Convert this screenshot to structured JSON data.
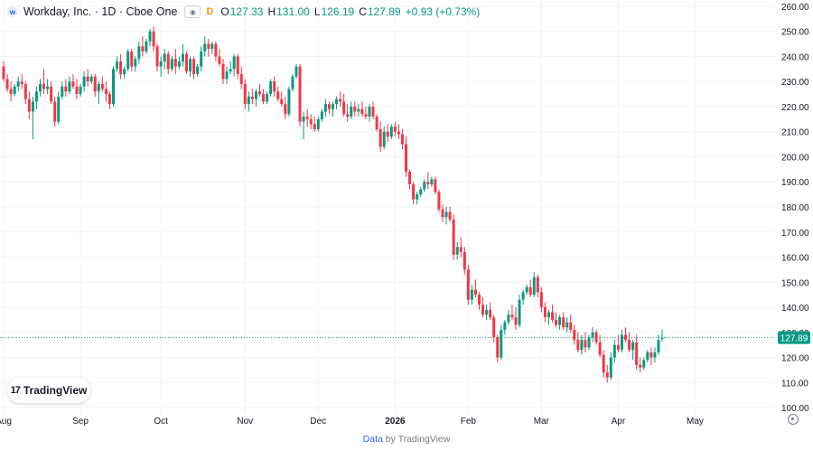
{
  "header": {
    "symbol": "Workday, Inc. · 1D · Cboe One",
    "flag": "D",
    "ohlc": [
      {
        "label": "O",
        "value": "127.33"
      },
      {
        "label": "H",
        "value": "131.00"
      },
      {
        "label": "L",
        "value": "126.19"
      },
      {
        "label": "C",
        "value": "127.89"
      }
    ],
    "change": "+0.93 (+0.73%)"
  },
  "branding": {
    "badge_text": "TradingView",
    "footer_prefix": "Data",
    "footer_suffix": "by TradingView"
  },
  "colors": {
    "up": "#089981",
    "down": "#f23645",
    "grid": "#f0f3fa",
    "axis_text": "#131722",
    "price_line": "#089981",
    "accent": "#2962ff"
  },
  "chart_data": {
    "type": "candlestick",
    "title": "Workday, Inc. · 1D · Cboe One",
    "xlabel": "",
    "ylabel": "",
    "ylim": [
      97.5,
      262.5
    ],
    "y_ticks": [
      "100.00",
      "110.00",
      "120.00",
      "130.00",
      "140.00",
      "150.00",
      "160.00",
      "170.00",
      "180.00",
      "190.00",
      "200.00",
      "210.00",
      "220.00",
      "230.00",
      "240.00",
      "250.00",
      "260.00"
    ],
    "x_ticks": [
      {
        "label": "Aug",
        "index": 0
      },
      {
        "label": "Sep",
        "index": 21
      },
      {
        "label": "Oct",
        "index": 43
      },
      {
        "label": "Nov",
        "index": 66
      },
      {
        "label": "Dec",
        "index": 86
      },
      {
        "label": "2026",
        "index": 107
      },
      {
        "label": "Feb",
        "index": 127
      },
      {
        "label": "Mar",
        "index": 147
      },
      {
        "label": "Apr",
        "index": 168
      },
      {
        "label": "May",
        "index": 189
      }
    ],
    "n_slots": 202,
    "last_price": 127.89,
    "last_price_label": "127.89",
    "grid": true,
    "candles": [
      [
        236,
        238,
        230,
        231
      ],
      [
        231,
        233,
        226,
        227
      ],
      [
        227,
        230,
        222,
        225
      ],
      [
        225,
        229,
        224,
        228
      ],
      [
        228,
        232,
        226,
        230
      ],
      [
        230,
        233,
        227,
        229
      ],
      [
        229,
        230,
        221,
        223
      ],
      [
        223,
        226,
        215,
        218
      ],
      [
        218,
        224,
        207,
        222
      ],
      [
        222,
        228,
        219,
        226
      ],
      [
        226,
        231,
        224,
        229
      ],
      [
        229,
        235,
        225,
        227
      ],
      [
        227,
        231,
        225,
        228
      ],
      [
        228,
        230,
        221,
        222
      ],
      [
        222,
        224,
        212,
        214
      ],
      [
        214,
        226,
        213,
        224
      ],
      [
        224,
        230,
        223,
        228
      ],
      [
        228,
        231,
        224,
        226
      ],
      [
        226,
        232,
        225,
        230
      ],
      [
        230,
        233,
        227,
        228
      ],
      [
        228,
        231,
        223,
        225
      ],
      [
        225,
        229,
        224,
        228
      ],
      [
        228,
        234,
        226,
        232
      ],
      [
        232,
        235,
        228,
        230
      ],
      [
        230,
        233,
        229,
        232
      ],
      [
        232,
        233,
        224,
        226
      ],
      [
        226,
        230,
        221,
        229
      ],
      [
        229,
        232,
        226,
        227
      ],
      [
        227,
        230,
        222,
        225
      ],
      [
        225,
        226,
        219,
        221
      ],
      [
        221,
        236,
        220,
        235
      ],
      [
        235,
        240,
        234,
        238
      ],
      [
        238,
        241,
        231,
        233
      ],
      [
        233,
        236,
        231,
        235
      ],
      [
        235,
        243,
        234,
        242
      ],
      [
        242,
        243,
        234,
        236
      ],
      [
        236,
        240,
        234,
        239
      ],
      [
        239,
        246,
        237,
        244
      ],
      [
        244,
        248,
        240,
        242
      ],
      [
        242,
        247,
        241,
        246
      ],
      [
        246,
        251,
        244,
        250
      ],
      [
        250,
        252,
        242,
        244
      ],
      [
        244,
        245,
        234,
        236
      ],
      [
        236,
        240,
        232,
        238
      ],
      [
        238,
        243,
        235,
        241
      ],
      [
        241,
        242,
        233,
        235
      ],
      [
        235,
        240,
        234,
        239
      ],
      [
        239,
        243,
        233,
        236
      ],
      [
        236,
        240,
        235,
        238
      ],
      [
        238,
        245,
        236,
        241
      ],
      [
        241,
        242,
        233,
        234
      ],
      [
        234,
        240,
        232,
        239
      ],
      [
        239,
        240,
        231,
        233
      ],
      [
        233,
        237,
        232,
        236
      ],
      [
        236,
        244,
        234,
        242
      ],
      [
        242,
        248,
        240,
        245
      ],
      [
        245,
        247,
        240,
        243
      ],
      [
        243,
        246,
        241,
        245
      ],
      [
        245,
        246,
        238,
        240
      ],
      [
        240,
        243,
        236,
        237
      ],
      [
        237,
        239,
        229,
        231
      ],
      [
        231,
        236,
        229,
        234
      ],
      [
        234,
        238,
        233,
        235
      ],
      [
        235,
        241,
        232,
        240
      ],
      [
        240,
        241,
        231,
        233
      ],
      [
        233,
        236,
        227,
        229
      ],
      [
        229,
        231,
        219,
        221
      ],
      [
        221,
        226,
        218,
        224
      ],
      [
        224,
        227,
        221,
        223
      ],
      [
        223,
        227,
        220,
        226
      ],
      [
        226,
        229,
        224,
        225
      ],
      [
        225,
        227,
        221,
        222
      ],
      [
        222,
        226,
        221,
        225
      ],
      [
        225,
        231,
        224,
        230
      ],
      [
        230,
        232,
        224,
        226
      ],
      [
        226,
        228,
        222,
        223
      ],
      [
        223,
        226,
        220,
        221
      ],
      [
        221,
        224,
        215,
        217
      ],
      [
        217,
        228,
        216,
        227
      ],
      [
        227,
        233,
        226,
        232
      ],
      [
        232,
        237,
        231,
        236
      ],
      [
        236,
        237,
        212,
        214
      ],
      [
        214,
        218,
        207,
        216
      ],
      [
        216,
        219,
        212,
        215
      ],
      [
        215,
        217,
        211,
        213
      ],
      [
        213,
        216,
        210,
        211
      ],
      [
        211,
        216,
        210,
        215
      ],
      [
        215,
        219,
        214,
        218
      ],
      [
        218,
        223,
        216,
        221
      ],
      [
        221,
        222,
        217,
        219
      ],
      [
        219,
        222,
        216,
        221
      ],
      [
        221,
        224,
        219,
        223
      ],
      [
        223,
        226,
        220,
        222
      ],
      [
        222,
        225,
        216,
        217
      ],
      [
        217,
        221,
        214,
        216
      ],
      [
        216,
        222,
        215,
        220
      ],
      [
        220,
        222,
        216,
        218
      ],
      [
        218,
        221,
        216,
        219
      ],
      [
        219,
        222,
        216,
        217
      ],
      [
        217,
        220,
        215,
        216
      ],
      [
        216,
        221,
        214,
        220
      ],
      [
        220,
        222,
        215,
        216
      ],
      [
        216,
        217,
        210,
        211
      ],
      [
        211,
        214,
        202,
        204
      ],
      [
        204,
        212,
        203,
        210
      ],
      [
        210,
        213,
        206,
        208
      ],
      [
        208,
        213,
        207,
        212
      ],
      [
        212,
        214,
        208,
        210
      ],
      [
        210,
        213,
        207,
        209
      ],
      [
        209,
        211,
        203,
        205
      ],
      [
        205,
        208,
        192,
        194
      ],
      [
        194,
        195,
        187,
        189
      ],
      [
        189,
        190,
        181,
        183
      ],
      [
        183,
        186,
        181,
        185
      ],
      [
        185,
        188,
        184,
        187
      ],
      [
        187,
        191,
        186,
        190
      ],
      [
        190,
        194,
        187,
        189
      ],
      [
        189,
        192,
        188,
        191
      ],
      [
        191,
        192,
        185,
        186
      ],
      [
        186,
        187,
        178,
        179
      ],
      [
        179,
        181,
        174,
        176
      ],
      [
        176,
        180,
        173,
        178
      ],
      [
        178,
        180,
        174,
        175
      ],
      [
        175,
        177,
        159,
        161
      ],
      [
        161,
        166,
        159,
        164
      ],
      [
        164,
        168,
        160,
        162
      ],
      [
        162,
        164,
        153,
        155
      ],
      [
        155,
        157,
        141,
        143
      ],
      [
        143,
        149,
        141,
        147
      ],
      [
        147,
        151,
        144,
        145
      ],
      [
        145,
        146,
        139,
        141
      ],
      [
        141,
        144,
        136,
        137
      ],
      [
        137,
        141,
        135,
        139
      ],
      [
        139,
        142,
        135,
        136
      ],
      [
        136,
        137,
        126,
        128
      ],
      [
        128,
        129,
        118,
        120
      ],
      [
        120,
        133,
        119,
        131
      ],
      [
        131,
        135,
        129,
        134
      ],
      [
        134,
        139,
        133,
        137
      ],
      [
        137,
        141,
        135,
        136
      ],
      [
        136,
        140,
        131,
        133
      ],
      [
        133,
        145,
        132,
        143
      ],
      [
        143,
        147,
        141,
        146
      ],
      [
        146,
        149,
        145,
        148
      ],
      [
        148,
        151,
        144,
        145
      ],
      [
        145,
        154,
        144,
        152
      ],
      [
        152,
        153,
        144,
        146
      ],
      [
        146,
        148,
        138,
        140
      ],
      [
        140,
        142,
        134,
        136
      ],
      [
        136,
        139,
        133,
        138
      ],
      [
        138,
        141,
        134,
        135
      ],
      [
        135,
        138,
        132,
        133
      ],
      [
        133,
        137,
        131,
        136
      ],
      [
        136,
        138,
        131,
        132
      ],
      [
        132,
        136,
        130,
        134
      ],
      [
        134,
        137,
        130,
        131
      ],
      [
        131,
        133,
        125,
        127
      ],
      [
        127,
        130,
        122,
        123
      ],
      [
        123,
        129,
        121,
        127
      ],
      [
        127,
        130,
        122,
        124
      ],
      [
        124,
        129,
        123,
        128
      ],
      [
        128,
        132,
        126,
        130
      ],
      [
        130,
        131,
        125,
        126
      ],
      [
        126,
        129,
        120,
        121
      ],
      [
        121,
        123,
        112,
        114
      ],
      [
        114,
        117,
        110,
        112
      ],
      [
        112,
        122,
        111,
        120
      ],
      [
        120,
        127,
        118,
        125
      ],
      [
        125,
        129,
        122,
        123
      ],
      [
        123,
        131,
        122,
        129
      ],
      [
        129,
        132,
        126,
        127
      ],
      [
        127,
        130,
        122,
        123
      ],
      [
        123,
        127,
        119,
        126
      ],
      [
        126,
        129,
        115,
        117
      ],
      [
        117,
        120,
        114,
        116
      ],
      [
        116,
        120,
        115,
        119
      ],
      [
        119,
        123,
        118,
        122
      ],
      [
        122,
        124,
        117,
        120
      ],
      [
        120,
        124,
        118,
        122
      ],
      [
        122,
        129,
        121,
        127
      ],
      [
        127.33,
        131.0,
        126.19,
        127.89
      ]
    ]
  }
}
